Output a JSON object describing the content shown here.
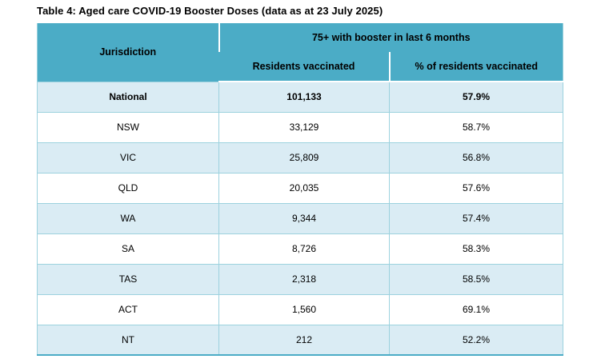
{
  "title": "Table 4: Aged care COVID-19 Booster Doses (data as at 23 July 2025)",
  "colors": {
    "accent": "#4BACC6",
    "row-alt": "#DAECF4",
    "border-light": "#9CD2DE",
    "text": "#000000",
    "bg": "#FFFFFF"
  },
  "table": {
    "jurisdiction_header": "Jurisdiction",
    "group_header": "75+ with booster in last 6 months",
    "sub_headers": {
      "residents": "Residents vaccinated",
      "percent": "% of residents vaccinated"
    },
    "rows": [
      {
        "jurisdiction": "National",
        "residents": "101,133",
        "percent": "57.9%",
        "bold": true
      },
      {
        "jurisdiction": "NSW",
        "residents": "33,129",
        "percent": "58.7%",
        "bold": false
      },
      {
        "jurisdiction": "VIC",
        "residents": "25,809",
        "percent": "56.8%",
        "bold": false
      },
      {
        "jurisdiction": "QLD",
        "residents": "20,035",
        "percent": "57.6%",
        "bold": false
      },
      {
        "jurisdiction": "WA",
        "residents": "9,344",
        "percent": "57.4%",
        "bold": false
      },
      {
        "jurisdiction": "SA",
        "residents": "8,726",
        "percent": "58.3%",
        "bold": false
      },
      {
        "jurisdiction": "TAS",
        "residents": "2,318",
        "percent": "58.5%",
        "bold": false
      },
      {
        "jurisdiction": "ACT",
        "residents": "1,560",
        "percent": "69.1%",
        "bold": false
      },
      {
        "jurisdiction": "NT",
        "residents": "212",
        "percent": "52.2%",
        "bold": false
      }
    ]
  }
}
